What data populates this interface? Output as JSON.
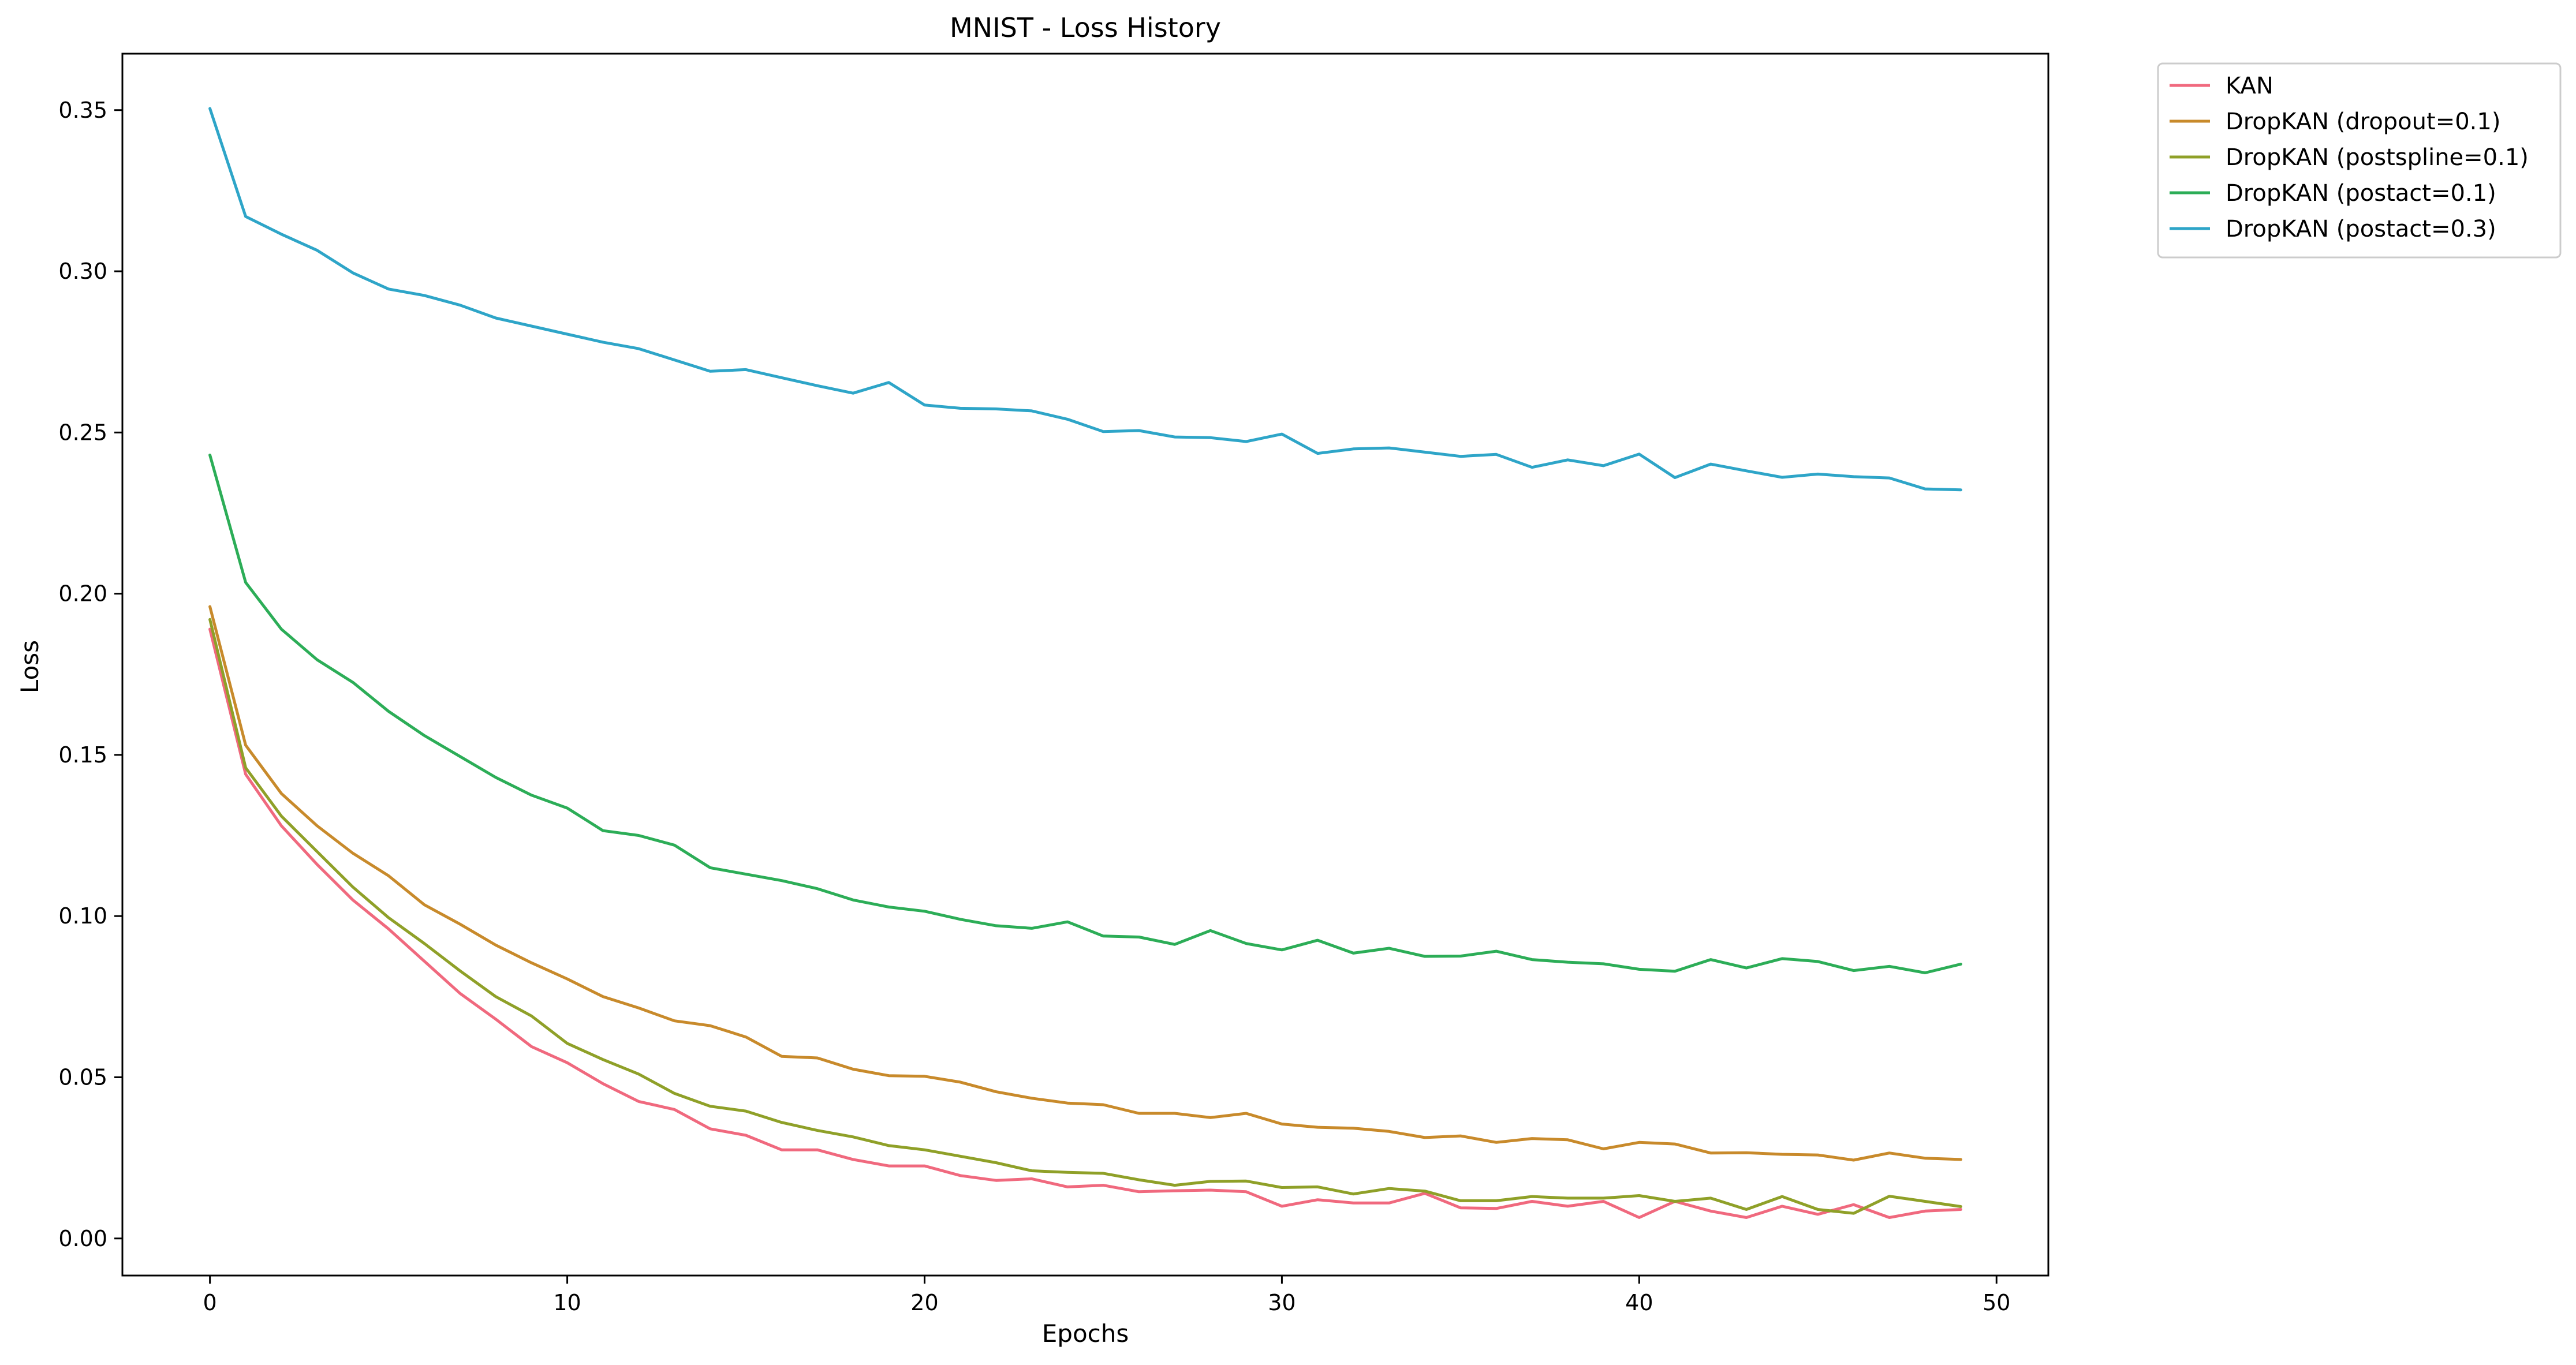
{
  "chart_data": {
    "type": "line",
    "title": "MNIST - Loss History",
    "xlabel": "Epochs",
    "ylabel": "Loss",
    "xlim": [
      -2.45,
      51.45
    ],
    "ylim": [
      -0.0115,
      0.3675
    ],
    "xticks": [
      0,
      10,
      20,
      30,
      40,
      50
    ],
    "xtick_labels": [
      "0",
      "10",
      "20",
      "30",
      "40",
      "50"
    ],
    "yticks": [
      0.0,
      0.05,
      0.1,
      0.15,
      0.2,
      0.25,
      0.3,
      0.35
    ],
    "ytick_labels": [
      "0.00",
      "0.05",
      "0.10",
      "0.15",
      "0.20",
      "0.25",
      "0.30",
      "0.35"
    ],
    "grid": false,
    "legend_position": "outside-upper-right",
    "x": [
      0,
      1,
      2,
      3,
      4,
      5,
      6,
      7,
      8,
      9,
      10,
      11,
      12,
      13,
      14,
      15,
      16,
      17,
      18,
      19,
      20,
      21,
      22,
      23,
      24,
      25,
      26,
      27,
      28,
      29,
      30,
      31,
      32,
      33,
      34,
      35,
      36,
      37,
      38,
      39,
      40,
      41,
      42,
      43,
      44,
      45,
      46,
      47,
      48,
      49
    ],
    "series": [
      {
        "name": "KAN",
        "color": "#f0697e",
        "values": [
          0.189,
          0.144,
          0.128,
          0.116,
          0.105,
          0.096,
          0.086,
          0.076,
          0.068,
          0.0595,
          0.0545,
          0.048,
          0.0425,
          0.04,
          0.034,
          0.032,
          0.0275,
          0.0275,
          0.0245,
          0.0225,
          0.0225,
          0.0195,
          0.018,
          0.0185,
          0.016,
          0.0165,
          0.0145,
          0.0148,
          0.015,
          0.0145,
          0.01,
          0.012,
          0.011,
          0.011,
          0.014,
          0.0095,
          0.0093,
          0.0115,
          0.01,
          0.0115,
          0.0065,
          0.0115,
          0.0085,
          0.0065,
          0.01,
          0.0075,
          0.0105,
          0.0065,
          0.0085,
          0.009
        ]
      },
      {
        "name": "DropKAN (dropout=0.1)",
        "color": "#c88a2b",
        "values": [
          0.196,
          0.153,
          0.138,
          0.128,
          0.1195,
          0.1125,
          0.1035,
          0.0975,
          0.091,
          0.0855,
          0.0805,
          0.075,
          0.0715,
          0.0675,
          0.066,
          0.0625,
          0.0565,
          0.056,
          0.0525,
          0.0505,
          0.0503,
          0.0485,
          0.0455,
          0.0435,
          0.042,
          0.0415,
          0.0388,
          0.0388,
          0.0375,
          0.0388,
          0.0355,
          0.0345,
          0.0342,
          0.0332,
          0.0313,
          0.0318,
          0.0298,
          0.031,
          0.0306,
          0.0278,
          0.0298,
          0.0293,
          0.0265,
          0.0266,
          0.0261,
          0.0259,
          0.0243,
          0.0265,
          0.0249,
          0.0245
        ]
      },
      {
        "name": "DropKAN (postspline=0.1)",
        "color": "#8fa028",
        "values": [
          0.192,
          0.146,
          0.131,
          0.12,
          0.109,
          0.0995,
          0.0915,
          0.083,
          0.075,
          0.069,
          0.0605,
          0.0555,
          0.051,
          0.045,
          0.041,
          0.0395,
          0.036,
          0.0335,
          0.0315,
          0.0288,
          0.0275,
          0.0255,
          0.0235,
          0.021,
          0.0205,
          0.0202,
          0.0182,
          0.0165,
          0.0177,
          0.0178,
          0.0158,
          0.016,
          0.0138,
          0.0155,
          0.0147,
          0.0117,
          0.0117,
          0.013,
          0.0125,
          0.0125,
          0.0133,
          0.0115,
          0.0125,
          0.009,
          0.013,
          0.009,
          0.0078,
          0.0131,
          0.0115,
          0.0099
        ]
      },
      {
        "name": "DropKAN (postact=0.1)",
        "color": "#2cad57",
        "values": [
          0.243,
          0.2035,
          0.189,
          0.1795,
          0.1725,
          0.1635,
          0.156,
          0.1495,
          0.143,
          0.1375,
          0.1335,
          0.1265,
          0.125,
          0.122,
          0.115,
          0.113,
          0.111,
          0.1085,
          0.105,
          0.1028,
          0.1015,
          0.099,
          0.097,
          0.0962,
          0.0982,
          0.0938,
          0.0935,
          0.0912,
          0.0955,
          0.0915,
          0.0895,
          0.0925,
          0.0885,
          0.09,
          0.0875,
          0.0876,
          0.0891,
          0.0865,
          0.0857,
          0.0852,
          0.0835,
          0.0829,
          0.0865,
          0.0839,
          0.0868,
          0.0859,
          0.0831,
          0.0844,
          0.0824,
          0.0851
        ]
      },
      {
        "name": "DropKAN (postact=0.3)",
        "color": "#2ea5c8",
        "values": [
          0.3505,
          0.317,
          0.3115,
          0.3065,
          0.2995,
          0.2945,
          0.2925,
          0.2895,
          0.2855,
          0.283,
          0.2805,
          0.278,
          0.276,
          0.2725,
          0.269,
          0.2695,
          0.267,
          0.2645,
          0.2622,
          0.2655,
          0.2585,
          0.2575,
          0.2573,
          0.2567,
          0.2541,
          0.2503,
          0.2506,
          0.2486,
          0.2484,
          0.2472,
          0.2495,
          0.2435,
          0.2449,
          0.2452,
          0.2439,
          0.2426,
          0.2432,
          0.2392,
          0.2415,
          0.2397,
          0.2433,
          0.236,
          0.2402,
          0.2381,
          0.2361,
          0.2371,
          0.2363,
          0.2359,
          0.2325,
          0.2322
        ]
      }
    ]
  }
}
